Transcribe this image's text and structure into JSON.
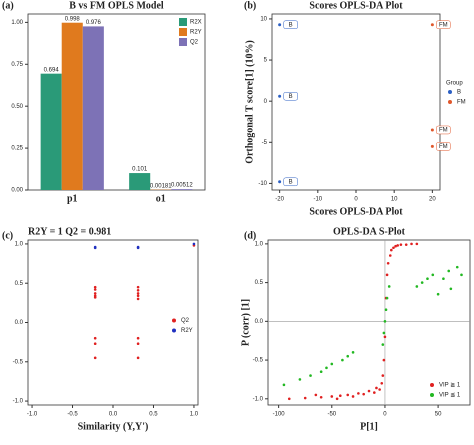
{
  "chart_data": [
    {
      "panel": "(a)",
      "type": "bar",
      "title": "B vs FM OPLS Model",
      "legend": "upper right",
      "categories": [
        "p1",
        "o1"
      ],
      "series": [
        {
          "name": "R2X",
          "color": "#2a9a78",
          "values": [
            0.694,
            0.101
          ]
        },
        {
          "name": "R2Y",
          "color": "#e07a1e",
          "values": [
            0.998,
            0.00181
          ]
        },
        {
          "name": "Q2",
          "color": "#7d72b6",
          "values": [
            0.976,
            0.00512
          ]
        }
      ],
      "ylim": [
        0,
        1.05
      ],
      "yticks": [
        {
          "value": 0,
          "label": "0.00"
        },
        0.25,
        {
          "value": 0.5,
          "label": "0.50"
        },
        0.75,
        {
          "value": 1,
          "label": "1.00"
        }
      ]
    },
    {
      "panel": "(b)",
      "type": "scatter",
      "title": "Scores OPLS-DA Plot",
      "x_label": "Scores OPLS-DA Plot",
      "y_label": "Orthogonal T score[1] (10%)",
      "legend": "right",
      "legend_title": "Group",
      "series": [
        {
          "name": "B",
          "color": "#2b5fc4",
          "x": [
            -20,
            -20,
            -20
          ],
          "values": [
            9.3,
            0.6,
            -9.8
          ],
          "point_labels": [
            "B",
            "B",
            "B"
          ]
        },
        {
          "name": "FM",
          "color": "#e0572b",
          "x": [
            20,
            20,
            20
          ],
          "values": [
            9.3,
            -3.5,
            -5.5
          ],
          "point_labels": [
            "FM",
            "FM",
            "FM"
          ]
        }
      ],
      "xlim": [
        -22,
        22
      ],
      "ylim": [
        -10.8,
        10.6
      ],
      "xticks": [
        -20,
        -10,
        0,
        10,
        20
      ],
      "yticks": [
        -10,
        -5,
        0,
        5,
        10
      ]
    },
    {
      "panel": "(c)",
      "type": "scatter",
      "title": "R2Y = 1   Q2 = 0.981",
      "x_label": "Similarity (Y,Y')",
      "legend": "center right",
      "series": [
        {
          "name": "Q2",
          "color": "#e02020",
          "x": [
            -0.22,
            -0.22,
            -0.22,
            -0.22,
            -0.22,
            -0.22,
            -0.22,
            -0.22,
            0.31,
            0.31,
            0.31,
            0.31,
            0.31,
            0.31,
            0.31,
            0.31,
            1.0
          ],
          "values": [
            0.45,
            0.42,
            0.37,
            0.34,
            0.32,
            -0.2,
            -0.27,
            -0.45,
            0.45,
            0.41,
            0.37,
            0.34,
            0.3,
            -0.2,
            -0.27,
            -0.45,
            0.981
          ]
        },
        {
          "name": "R2Y",
          "color": "#2030c0",
          "x": [
            -0.22,
            -0.22,
            0.31,
            0.31,
            1.0
          ],
          "values": [
            0.96,
            0.95,
            0.96,
            0.95,
            1.0
          ]
        }
      ],
      "xlim": [
        -1.05,
        1.05
      ],
      "ylim": [
        -1.05,
        1.05
      ],
      "xticks": [
        {
          "value": -1,
          "label": "-1.0"
        },
        -0.5,
        {
          "value": 0,
          "label": "0.0"
        },
        0.5,
        {
          "value": 1,
          "label": "1.0"
        }
      ],
      "yticks": [
        {
          "value": -1,
          "label": "-1.0"
        },
        -0.5,
        {
          "value": 0,
          "label": "0.0"
        },
        0.5,
        {
          "value": 1,
          "label": "1.0"
        }
      ]
    },
    {
      "panel": "(d)",
      "type": "scatter",
      "title": "OPLS-DA  S-Plot",
      "x_label": "P[1]",
      "y_label": "P (corr) [1]",
      "legend": "lower right",
      "series": [
        {
          "name": "VIP ≧ 1",
          "color": "#e02020",
          "x": [
            -90,
            -75,
            -65,
            -60,
            -50,
            -45,
            -42,
            -35,
            -30,
            -25,
            -20,
            -15,
            -10,
            -8,
            -5,
            -3,
            -2,
            -1,
            0,
            1,
            2,
            3,
            5,
            6,
            8,
            10,
            12,
            15,
            20,
            25,
            30
          ],
          "values": [
            -1.0,
            -0.99,
            -0.95,
            -0.98,
            -0.97,
            -1.0,
            -0.96,
            -0.95,
            -0.97,
            -0.93,
            -0.94,
            -0.9,
            -0.92,
            -0.86,
            -0.88,
            -0.8,
            -0.7,
            -0.5,
            -0.2,
            0.3,
            0.6,
            0.75,
            0.85,
            0.92,
            0.95,
            0.97,
            0.98,
            0.99,
            0.99,
            1.0,
            1.0
          ]
        },
        {
          "name": "VIP ≦ 1",
          "color": "#22b822",
          "x": [
            -95,
            -80,
            -70,
            -60,
            -55,
            -50,
            -40,
            -35,
            -30,
            -2,
            -1,
            0,
            1,
            2,
            4,
            30,
            35,
            40,
            45,
            50,
            55,
            60,
            62,
            68,
            72
          ],
          "values": [
            -0.82,
            -0.75,
            -0.7,
            -0.65,
            -0.6,
            -0.55,
            -0.5,
            -0.45,
            -0.4,
            -0.3,
            -0.15,
            0,
            0.15,
            0.3,
            0.45,
            0.45,
            0.5,
            0.55,
            0.6,
            0.35,
            0.55,
            0.65,
            0.42,
            0.7,
            0.6
          ]
        }
      ],
      "xlim": [
        -110,
        80
      ],
      "ylim": [
        -1.08,
        1.05
      ],
      "xticks": [
        -100,
        -50,
        0,
        50
      ],
      "yticks": [
        {
          "value": -1,
          "label": "-1.0"
        },
        -0.5,
        {
          "value": 0,
          "label": "0.0"
        },
        0.5,
        {
          "value": 1,
          "label": "1.0"
        }
      ]
    }
  ]
}
